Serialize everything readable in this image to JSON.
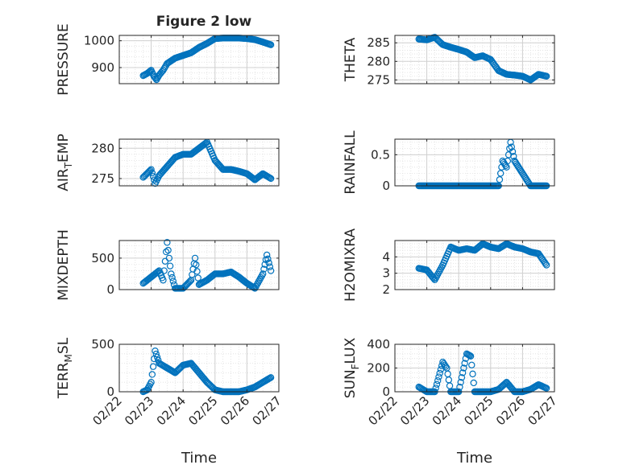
{
  "figure": {
    "title": "Figure 2 low"
  },
  "chart_data": [
    {
      "type": "scatter",
      "ylabel": "PRESSURE",
      "ylim": [
        840,
        1020
      ],
      "yticks": [
        900,
        1000
      ],
      "xlim": [
        "02/22",
        "02/27"
      ],
      "x": [
        "02/22 18:00",
        "02/22 21:00",
        "02/23 00:00",
        "02/23 02:00",
        "02/23 04:00",
        "02/23 06:00",
        "02/23 09:00",
        "02/23 12:00",
        "02/23 18:00",
        "02/24 00:00",
        "02/24 06:00",
        "02/24 12:00",
        "02/24 18:00",
        "02/25 00:00",
        "02/25 06:00",
        "02/25 12:00",
        "02/25 18:00",
        "02/26 00:00",
        "02/26 06:00",
        "02/26 12:00",
        "02/26 18:00"
      ],
      "y": [
        870,
        878,
        890,
        868,
        855,
        872,
        890,
        915,
        935,
        945,
        955,
        975,
        990,
        1008,
        1010,
        1010,
        1010,
        1008,
        1004,
        995,
        985
      ],
      "grid": true
    },
    {
      "type": "scatter",
      "ylabel": "THETA",
      "ylim": [
        274,
        287
      ],
      "yticks": [
        275,
        280,
        285
      ],
      "xlim": [
        "02/22",
        "02/27"
      ],
      "x": [
        "02/22 18:00",
        "02/23 00:00",
        "02/23 06:00",
        "02/23 12:00",
        "02/23 18:00",
        "02/24 00:00",
        "02/24 06:00",
        "02/24 12:00",
        "02/24 18:00",
        "02/25 00:00",
        "02/25 06:00",
        "02/25 12:00",
        "02/25 18:00",
        "02/26 00:00",
        "02/26 06:00",
        "02/26 12:00",
        "02/26 18:00"
      ],
      "y": [
        286,
        285.8,
        286.5,
        284.5,
        283.8,
        283.2,
        282.5,
        281,
        281.5,
        280.5,
        277.5,
        276.5,
        276.3,
        276,
        275,
        276.5,
        276
      ],
      "grid": true
    },
    {
      "type": "scatter",
      "ylabel": "AIR_TEMP",
      "ylim": [
        273.8,
        281.5
      ],
      "yticks": [
        275,
        280
      ],
      "xlim": [
        "02/22",
        "02/27"
      ],
      "x": [
        "02/22 18:00",
        "02/23 00:00",
        "02/23 03:00",
        "02/23 06:00",
        "02/23 12:00",
        "02/23 18:00",
        "02/24 00:00",
        "02/24 06:00",
        "02/24 12:00",
        "02/24 18:00",
        "02/25 00:00",
        "02/25 06:00",
        "02/25 12:00",
        "02/25 18:00",
        "02/26 00:00",
        "02/26 06:00",
        "02/26 12:00",
        "02/26 18:00"
      ],
      "y": [
        275.2,
        276.5,
        274.2,
        275.5,
        277,
        278.5,
        279,
        279,
        280,
        281,
        278,
        276.5,
        276.5,
        276.2,
        275.8,
        274.8,
        275.8,
        275
      ],
      "grid": true
    },
    {
      "type": "scatter",
      "ylabel": "RAINFALL",
      "ylim": [
        0,
        0.75
      ],
      "yticks": [
        0,
        0.5
      ],
      "xlim": [
        "02/22",
        "02/27"
      ],
      "x": [
        "02/22 18:00",
        "02/23 12:00",
        "02/24 06:00",
        "02/25 00:00",
        "02/25 06:00",
        "02/25 09:00",
        "02/25 12:00",
        "02/25 15:00",
        "02/25 18:00",
        "02/26 06:00",
        "02/26 18:00"
      ],
      "y": [
        0,
        0,
        0,
        0,
        0,
        0.4,
        0.3,
        0.7,
        0.4,
        0,
        0
      ],
      "grid": true
    },
    {
      "type": "scatter",
      "ylabel": "MIXDEPTH",
      "ylim": [
        0,
        780
      ],
      "yticks": [
        0,
        500
      ],
      "xlim": [
        "02/22",
        "02/27"
      ],
      "x": [
        "02/22 18:00",
        "02/23 00:00",
        "02/23 06:00",
        "02/23 09:00",
        "02/23 12:00",
        "02/23 15:00",
        "02/23 18:00",
        "02/24 00:00",
        "02/24 06:00",
        "02/24 09:00",
        "02/24 12:00",
        "02/24 18:00",
        "02/25 00:00",
        "02/25 06:00",
        "02/25 12:00",
        "02/25 18:00",
        "02/26 00:00",
        "02/26 06:00",
        "02/26 12:00",
        "02/26 15:00",
        "02/26 18:00"
      ],
      "y": [
        100,
        200,
        300,
        150,
        750,
        250,
        20,
        20,
        150,
        500,
        80,
        150,
        250,
        250,
        280,
        200,
        100,
        20,
        250,
        550,
        300
      ],
      "grid": true
    },
    {
      "type": "scatter",
      "ylabel": "H2OMIXRA",
      "ylim": [
        2,
        5
      ],
      "yticks": [
        2,
        3,
        4
      ],
      "xlim": [
        "02/22",
        "02/27"
      ],
      "x": [
        "02/22 18:00",
        "02/23 00:00",
        "02/23 06:00",
        "02/23 12:00",
        "02/23 18:00",
        "02/24 00:00",
        "02/24 06:00",
        "02/24 12:00",
        "02/24 18:00",
        "02/25 00:00",
        "02/25 06:00",
        "02/25 12:00",
        "02/25 18:00",
        "02/26 00:00",
        "02/26 06:00",
        "02/26 12:00",
        "02/26 18:00"
      ],
      "y": [
        3.3,
        3.2,
        2.6,
        3.5,
        4.6,
        4.4,
        4.5,
        4.4,
        4.8,
        4.6,
        4.5,
        4.8,
        4.6,
        4.5,
        4.3,
        4.2,
        3.5
      ],
      "grid": true
    },
    {
      "type": "scatter",
      "ylabel": "TERR_MSL",
      "ylim": [
        0,
        500
      ],
      "yticks": [
        0,
        500
      ],
      "xlim": [
        "02/22",
        "02/27"
      ],
      "x": [
        "02/22 18:00",
        "02/22 21:00",
        "02/23 00:00",
        "02/23 03:00",
        "02/23 06:00",
        "02/23 12:00",
        "02/23 18:00",
        "02/24 00:00",
        "02/24 06:00",
        "02/24 12:00",
        "02/24 18:00",
        "02/25 00:00",
        "02/25 06:00",
        "02/25 12:00",
        "02/25 18:00",
        "02/26 00:00",
        "02/26 06:00",
        "02/26 12:00",
        "02/26 18:00"
      ],
      "y": [
        0,
        20,
        100,
        430,
        300,
        250,
        200,
        280,
        300,
        200,
        100,
        20,
        0,
        0,
        0,
        20,
        50,
        100,
        150
      ],
      "grid": true
    },
    {
      "type": "scatter",
      "ylabel": "SUN_FLUX",
      "ylim": [
        0,
        400
      ],
      "yticks": [
        0,
        200,
        400
      ],
      "xlim": [
        "02/22",
        "02/27"
      ],
      "x": [
        "02/22 18:00",
        "02/23 00:00",
        "02/23 06:00",
        "02/23 12:00",
        "02/23 15:00",
        "02/23 18:00",
        "02/24 00:00",
        "02/24 06:00",
        "02/24 09:00",
        "02/24 12:00",
        "02/24 18:00",
        "02/25 00:00",
        "02/25 06:00",
        "02/25 12:00",
        "02/25 18:00",
        "02/26 00:00",
        "02/26 06:00",
        "02/26 12:00",
        "02/26 18:00"
      ],
      "y": [
        40,
        0,
        0,
        250,
        200,
        0,
        0,
        320,
        300,
        0,
        0,
        0,
        20,
        80,
        0,
        0,
        20,
        60,
        30
      ],
      "grid": true
    }
  ],
  "xaxis": {
    "label": "Time",
    "ticks": [
      "02/22",
      "02/23",
      "02/24",
      "02/25",
      "02/26",
      "02/27"
    ]
  },
  "colors": {
    "marker": "#0072bd",
    "axis": "#262626",
    "grid": "#dfdfdf"
  }
}
